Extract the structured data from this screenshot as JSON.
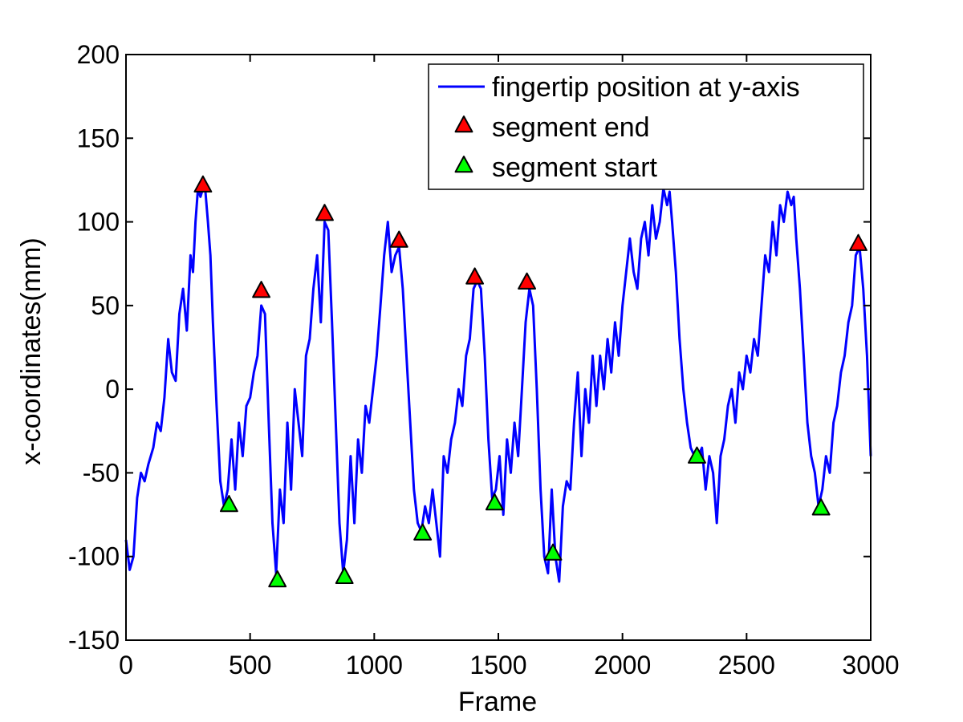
{
  "chart_data": {
    "type": "line",
    "title": "",
    "xlabel": "Frame",
    "ylabel": "x-coordinates(mm)",
    "xlim": [
      0,
      3000
    ],
    "ylim": [
      -150,
      200
    ],
    "xticks": [
      0,
      500,
      1000,
      1500,
      2000,
      2500,
      3000
    ],
    "yticks": [
      -150,
      -100,
      -50,
      0,
      50,
      100,
      150,
      200
    ],
    "grid": false,
    "legend_position": "top-right",
    "series": [
      {
        "name": "fingertip position at y-axis",
        "kind": "line",
        "color": "#0000ff",
        "points": [
          [
            0,
            -90
          ],
          [
            15,
            -108
          ],
          [
            30,
            -100
          ],
          [
            45,
            -65
          ],
          [
            60,
            -50
          ],
          [
            75,
            -55
          ],
          [
            90,
            -45
          ],
          [
            110,
            -35
          ],
          [
            125,
            -20
          ],
          [
            140,
            -25
          ],
          [
            155,
            -5
          ],
          [
            170,
            30
          ],
          [
            185,
            10
          ],
          [
            200,
            5
          ],
          [
            215,
            45
          ],
          [
            230,
            60
          ],
          [
            245,
            35
          ],
          [
            260,
            80
          ],
          [
            270,
            70
          ],
          [
            280,
            100
          ],
          [
            290,
            120
          ],
          [
            300,
            115
          ],
          [
            310,
            120
          ],
          [
            320,
            118
          ],
          [
            330,
            100
          ],
          [
            340,
            80
          ],
          [
            350,
            40
          ],
          [
            365,
            -10
          ],
          [
            380,
            -55
          ],
          [
            395,
            -70
          ],
          [
            410,
            -60
          ],
          [
            425,
            -30
          ],
          [
            440,
            -60
          ],
          [
            455,
            -20
          ],
          [
            470,
            -40
          ],
          [
            485,
            -10
          ],
          [
            500,
            -5
          ],
          [
            515,
            10
          ],
          [
            530,
            20
          ],
          [
            545,
            50
          ],
          [
            560,
            45
          ],
          [
            575,
            -20
          ],
          [
            590,
            -80
          ],
          [
            605,
            -110
          ],
          [
            620,
            -60
          ],
          [
            635,
            -80
          ],
          [
            650,
            -20
          ],
          [
            665,
            -60
          ],
          [
            680,
            0
          ],
          [
            695,
            -20
          ],
          [
            710,
            -40
          ],
          [
            725,
            20
          ],
          [
            740,
            30
          ],
          [
            755,
            60
          ],
          [
            770,
            80
          ],
          [
            785,
            40
          ],
          [
            800,
            100
          ],
          [
            815,
            95
          ],
          [
            830,
            40
          ],
          [
            845,
            -20
          ],
          [
            860,
            -80
          ],
          [
            875,
            -110
          ],
          [
            890,
            -90
          ],
          [
            905,
            -40
          ],
          [
            920,
            -80
          ],
          [
            935,
            -30
          ],
          [
            950,
            -50
          ],
          [
            965,
            -10
          ],
          [
            980,
            -20
          ],
          [
            995,
            0
          ],
          [
            1010,
            20
          ],
          [
            1025,
            50
          ],
          [
            1040,
            80
          ],
          [
            1055,
            100
          ],
          [
            1070,
            70
          ],
          [
            1085,
            80
          ],
          [
            1100,
            85
          ],
          [
            1115,
            60
          ],
          [
            1130,
            20
          ],
          [
            1145,
            -20
          ],
          [
            1160,
            -60
          ],
          [
            1175,
            -80
          ],
          [
            1190,
            -85
          ],
          [
            1205,
            -70
          ],
          [
            1220,
            -80
          ],
          [
            1235,
            -60
          ],
          [
            1250,
            -80
          ],
          [
            1265,
            -100
          ],
          [
            1280,
            -40
          ],
          [
            1295,
            -50
          ],
          [
            1310,
            -30
          ],
          [
            1325,
            -20
          ],
          [
            1340,
            0
          ],
          [
            1355,
            -10
          ],
          [
            1370,
            20
          ],
          [
            1385,
            30
          ],
          [
            1400,
            60
          ],
          [
            1415,
            65
          ],
          [
            1430,
            60
          ],
          [
            1445,
            20
          ],
          [
            1460,
            -30
          ],
          [
            1475,
            -65
          ],
          [
            1490,
            -60
          ],
          [
            1505,
            -40
          ],
          [
            1520,
            -75
          ],
          [
            1535,
            -30
          ],
          [
            1550,
            -50
          ],
          [
            1565,
            -20
          ],
          [
            1580,
            -40
          ],
          [
            1595,
            0
          ],
          [
            1610,
            40
          ],
          [
            1625,
            60
          ],
          [
            1640,
            50
          ],
          [
            1655,
            0
          ],
          [
            1670,
            -60
          ],
          [
            1685,
            -100
          ],
          [
            1700,
            -110
          ],
          [
            1715,
            -60
          ],
          [
            1730,
            -100
          ],
          [
            1745,
            -115
          ],
          [
            1760,
            -70
          ],
          [
            1775,
            -55
          ],
          [
            1790,
            -60
          ],
          [
            1805,
            -20
          ],
          [
            1820,
            10
          ],
          [
            1835,
            -40
          ],
          [
            1850,
            0
          ],
          [
            1865,
            -20
          ],
          [
            1880,
            20
          ],
          [
            1895,
            -10
          ],
          [
            1910,
            20
          ],
          [
            1925,
            0
          ],
          [
            1940,
            30
          ],
          [
            1955,
            10
          ],
          [
            1970,
            40
          ],
          [
            1985,
            20
          ],
          [
            2000,
            50
          ],
          [
            2015,
            70
          ],
          [
            2030,
            90
          ],
          [
            2045,
            70
          ],
          [
            2060,
            60
          ],
          [
            2075,
            90
          ],
          [
            2090,
            100
          ],
          [
            2105,
            80
          ],
          [
            2120,
            110
          ],
          [
            2135,
            90
          ],
          [
            2150,
            100
          ],
          [
            2165,
            120
          ],
          [
            2180,
            110
          ],
          [
            2190,
            118
          ],
          [
            2200,
            100
          ],
          [
            2215,
            70
          ],
          [
            2230,
            30
          ],
          [
            2245,
            0
          ],
          [
            2260,
            -20
          ],
          [
            2275,
            -35
          ],
          [
            2290,
            -40
          ],
          [
            2305,
            -40
          ],
          [
            2320,
            -35
          ],
          [
            2335,
            -60
          ],
          [
            2350,
            -40
          ],
          [
            2365,
            -50
          ],
          [
            2380,
            -80
          ],
          [
            2395,
            -40
          ],
          [
            2410,
            -30
          ],
          [
            2425,
            -10
          ],
          [
            2440,
            0
          ],
          [
            2455,
            -20
          ],
          [
            2470,
            10
          ],
          [
            2485,
            0
          ],
          [
            2500,
            20
          ],
          [
            2515,
            10
          ],
          [
            2530,
            30
          ],
          [
            2545,
            20
          ],
          [
            2560,
            50
          ],
          [
            2575,
            80
          ],
          [
            2590,
            70
          ],
          [
            2605,
            100
          ],
          [
            2620,
            80
          ],
          [
            2635,
            110
          ],
          [
            2650,
            100
          ],
          [
            2665,
            118
          ],
          [
            2680,
            110
          ],
          [
            2690,
            115
          ],
          [
            2700,
            90
          ],
          [
            2715,
            60
          ],
          [
            2730,
            20
          ],
          [
            2745,
            -20
          ],
          [
            2760,
            -40
          ],
          [
            2775,
            -50
          ],
          [
            2790,
            -70
          ],
          [
            2805,
            -60
          ],
          [
            2820,
            -40
          ],
          [
            2835,
            -50
          ],
          [
            2850,
            -20
          ],
          [
            2865,
            -10
          ],
          [
            2880,
            10
          ],
          [
            2895,
            20
          ],
          [
            2910,
            40
          ],
          [
            2925,
            50
          ],
          [
            2940,
            80
          ],
          [
            2955,
            85
          ],
          [
            2970,
            60
          ],
          [
            2985,
            20
          ],
          [
            3000,
            -40
          ]
        ]
      },
      {
        "name": "segment end",
        "kind": "marker",
        "marker": "triangle",
        "color": "#ff0000",
        "points": [
          [
            310,
            122
          ],
          [
            545,
            59
          ],
          [
            800,
            105
          ],
          [
            1100,
            89
          ],
          [
            1405,
            67
          ],
          [
            1615,
            64
          ],
          [
            2950,
            87
          ]
        ]
      },
      {
        "name": "segment start",
        "kind": "marker",
        "marker": "triangle",
        "color": "#00ff00",
        "points": [
          [
            415,
            -69
          ],
          [
            610,
            -114
          ],
          [
            880,
            -112
          ],
          [
            1195,
            -86
          ],
          [
            1485,
            -68
          ],
          [
            1720,
            -98
          ],
          [
            2300,
            -40
          ],
          [
            2800,
            -71
          ]
        ]
      }
    ]
  }
}
